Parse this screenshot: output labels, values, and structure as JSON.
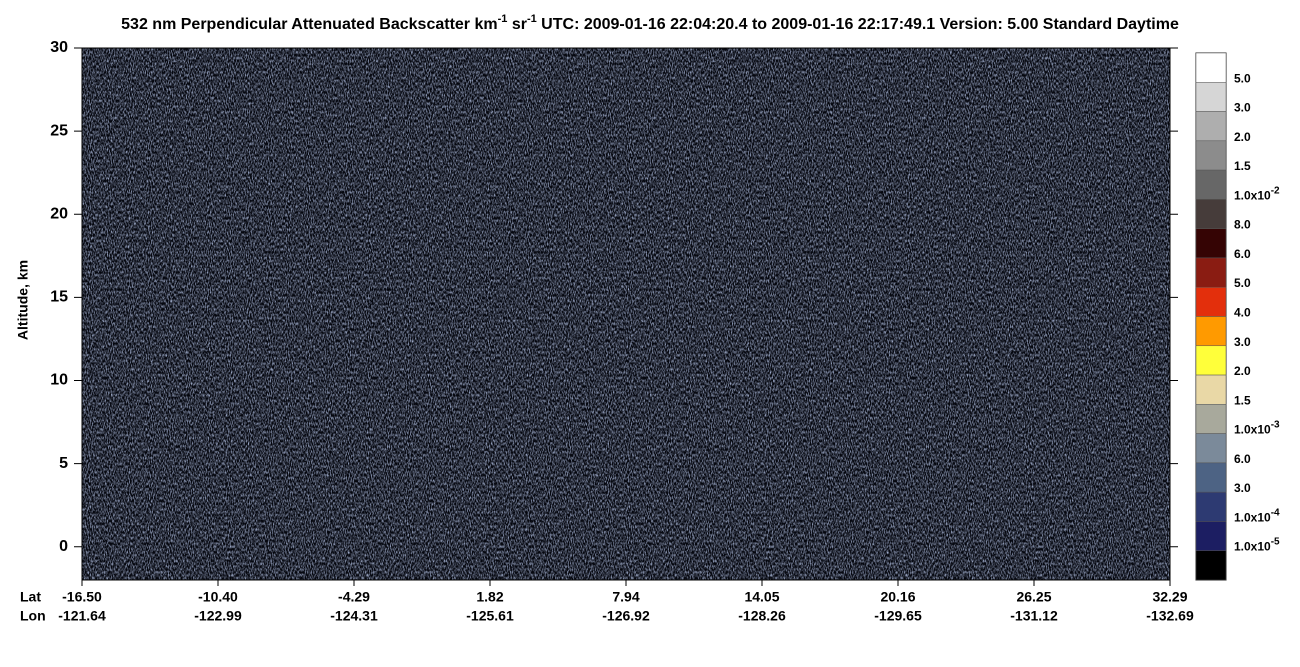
{
  "chart_data": {
    "type": "heatmap",
    "title_parts": [
      {
        "text": "532 nm Perpendicular Attenuated Backscatter km"
      },
      {
        "text": "-1",
        "sup": true
      },
      {
        "text": " sr"
      },
      {
        "text": "-1",
        "sup": true
      },
      {
        "text": "  UTC: 2009-01-16 22:04:20.4 to 2009-01-16 22:17:49.1  Version: 5.00 Standard Daytime"
      }
    ],
    "y_label": "Altitude, km",
    "ylim": [
      -2,
      30
    ],
    "yticks": [
      0,
      5,
      10,
      15,
      20,
      25,
      30
    ],
    "x_row_names": [
      "Lat",
      "Lon"
    ],
    "x_labels": [
      {
        "lat": "-16.50",
        "lon": "-121.64"
      },
      {
        "lat": "-10.40",
        "lon": "-122.99"
      },
      {
        "lat": "-4.29",
        "lon": "-124.31"
      },
      {
        "lat": "1.82",
        "lon": "-125.61"
      },
      {
        "lat": "7.94",
        "lon": "-126.92"
      },
      {
        "lat": "14.05",
        "lon": "-128.26"
      },
      {
        "lat": "20.16",
        "lon": "-129.65"
      },
      {
        "lat": "26.25",
        "lon": "-131.12"
      },
      {
        "lat": "32.29",
        "lon": "-132.69"
      }
    ],
    "colorbar": {
      "colors": [
        "#ffffff",
        "#d6d6d6",
        "#aeaeae",
        "#8c8c8c",
        "#676767",
        "#463c3a",
        "#350404",
        "#8a1c12",
        "#e32f0c",
        "#ff9a00",
        "#ffff3a",
        "#e9d8a6",
        "#a8a99c",
        "#7b8a9a",
        "#4d6384",
        "#2d3a72",
        "#1c1e62",
        "#000000"
      ],
      "labels": [
        {
          "text": "5.0"
        },
        {
          "text": "3.0"
        },
        {
          "text": "2.0"
        },
        {
          "text": "1.5"
        },
        {
          "text": "1.0x10",
          "exp": "-2"
        },
        {
          "text": "8.0"
        },
        {
          "text": "6.0"
        },
        {
          "text": "5.0"
        },
        {
          "text": "4.0"
        },
        {
          "text": "3.0"
        },
        {
          "text": "2.0"
        },
        {
          "text": "1.5"
        },
        {
          "text": "1.0x10",
          "exp": "-3"
        },
        {
          "text": "6.0"
        },
        {
          "text": "3.0"
        },
        {
          "text": "1.0x10",
          "exp": "-4"
        },
        {
          "text": "1.0x10",
          "exp": "-5"
        }
      ]
    }
  }
}
